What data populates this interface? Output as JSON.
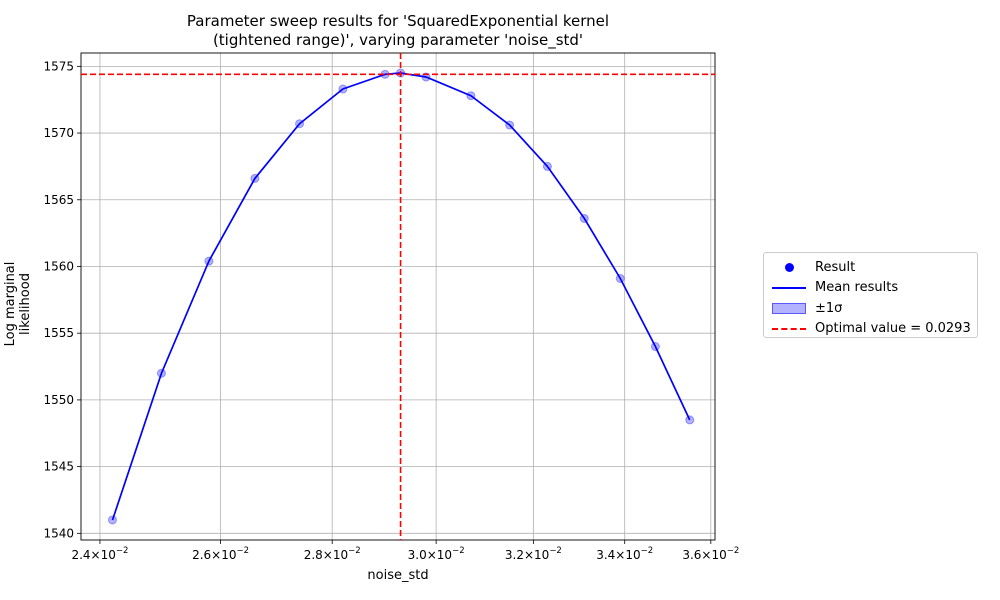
{
  "chart_data": {
    "type": "line",
    "title": "Parameter sweep results for 'SquaredExponential kernel\n(tightened range)', varying parameter 'noise_std'",
    "xlabel": "noise_std",
    "ylabel": "Log marginal likelihood",
    "xscale": "log",
    "xlim": [
      0.0237,
      0.0361
    ],
    "ylim": [
      1539.5,
      1576
    ],
    "xticks": [
      {
        "value": 0.024,
        "base": "2.4",
        "exp": "−2"
      },
      {
        "value": 0.026,
        "base": "2.6",
        "exp": "−2"
      },
      {
        "value": 0.028,
        "base": "2.8",
        "exp": "−2"
      },
      {
        "value": 0.03,
        "base": "3.0",
        "exp": "−2"
      },
      {
        "value": 0.032,
        "base": "3.2",
        "exp": "−2"
      },
      {
        "value": 0.034,
        "base": "3.4",
        "exp": "−2"
      },
      {
        "value": 0.036,
        "base": "3.6",
        "exp": "−2"
      }
    ],
    "yticks": [
      1540,
      1545,
      1550,
      1555,
      1560,
      1565,
      1570,
      1575
    ],
    "grid": true,
    "legend_position": "right",
    "optimal_x": 0.0293,
    "optimal_y": 1574.4,
    "series": [
      {
        "name": "Result",
        "kind": "scatter",
        "color": "#0000ff",
        "x": [
          0.0242,
          0.025,
          0.0258,
          0.0266,
          0.0274,
          0.0282,
          0.029,
          0.0293,
          0.0298,
          0.0307,
          0.0315,
          0.0323,
          0.0331,
          0.0339,
          0.0347,
          0.0355
        ],
        "y": [
          1541.0,
          1552.0,
          1560.4,
          1566.6,
          1570.7,
          1573.3,
          1574.4,
          1574.5,
          1574.2,
          1572.8,
          1570.6,
          1567.5,
          1563.6,
          1559.1,
          1554.0,
          1548.5
        ]
      },
      {
        "name": "Mean results",
        "kind": "line",
        "color": "#0000ff"
      }
    ],
    "legend": [
      {
        "label": "Result",
        "symbol": "dot"
      },
      {
        "label": "Mean results",
        "symbol": "line"
      },
      {
        "label": "±1σ",
        "symbol": "patch"
      },
      {
        "label": "Optimal value = 0.0293",
        "symbol": "dash"
      }
    ]
  }
}
